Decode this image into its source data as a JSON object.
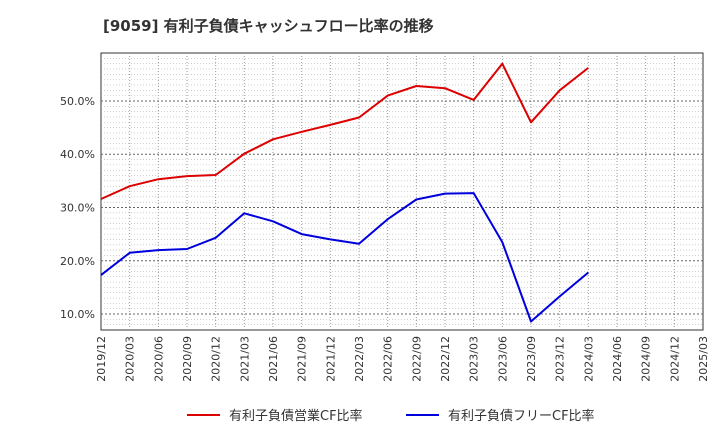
{
  "chart_data": {
    "type": "line",
    "title": "[9059]  有利子負債キャッシュフロー比率の推移",
    "x": [
      "2019/12",
      "2020/03",
      "2020/06",
      "2020/09",
      "2020/12",
      "2021/03",
      "2021/06",
      "2021/09",
      "2021/12",
      "2022/03",
      "2022/06",
      "2022/09",
      "2022/12",
      "2023/03",
      "2023/06",
      "2023/09",
      "2023/12",
      "2024/03",
      "2024/06",
      "2024/09",
      "2024/12",
      "2025/03"
    ],
    "series": [
      {
        "name": "有利子負債営業CF比率",
        "color": "#dd0000",
        "values": [
          31.6,
          34.0,
          35.3,
          35.9,
          36.1,
          40.1,
          42.8,
          44.2,
          45.5,
          46.9,
          51.0,
          52.8,
          52.4,
          50.2,
          57.0,
          46.0,
          52.0,
          56.2,
          null,
          null,
          null,
          null
        ]
      },
      {
        "name": "有利子負債フリーCF比率",
        "color": "#0000dd",
        "values": [
          17.3,
          21.5,
          22.0,
          22.2,
          24.3,
          28.9,
          27.4,
          25.0,
          24.0,
          23.2,
          27.8,
          31.5,
          32.6,
          32.7,
          23.5,
          8.6,
          13.3,
          17.8,
          null,
          null,
          null,
          null
        ]
      }
    ],
    "y_ticks": [
      "10.0%",
      "20.0%",
      "30.0%",
      "40.0%",
      "50.0%"
    ],
    "ylim": [
      7,
      59
    ],
    "grid": true,
    "legend": "bottom"
  }
}
